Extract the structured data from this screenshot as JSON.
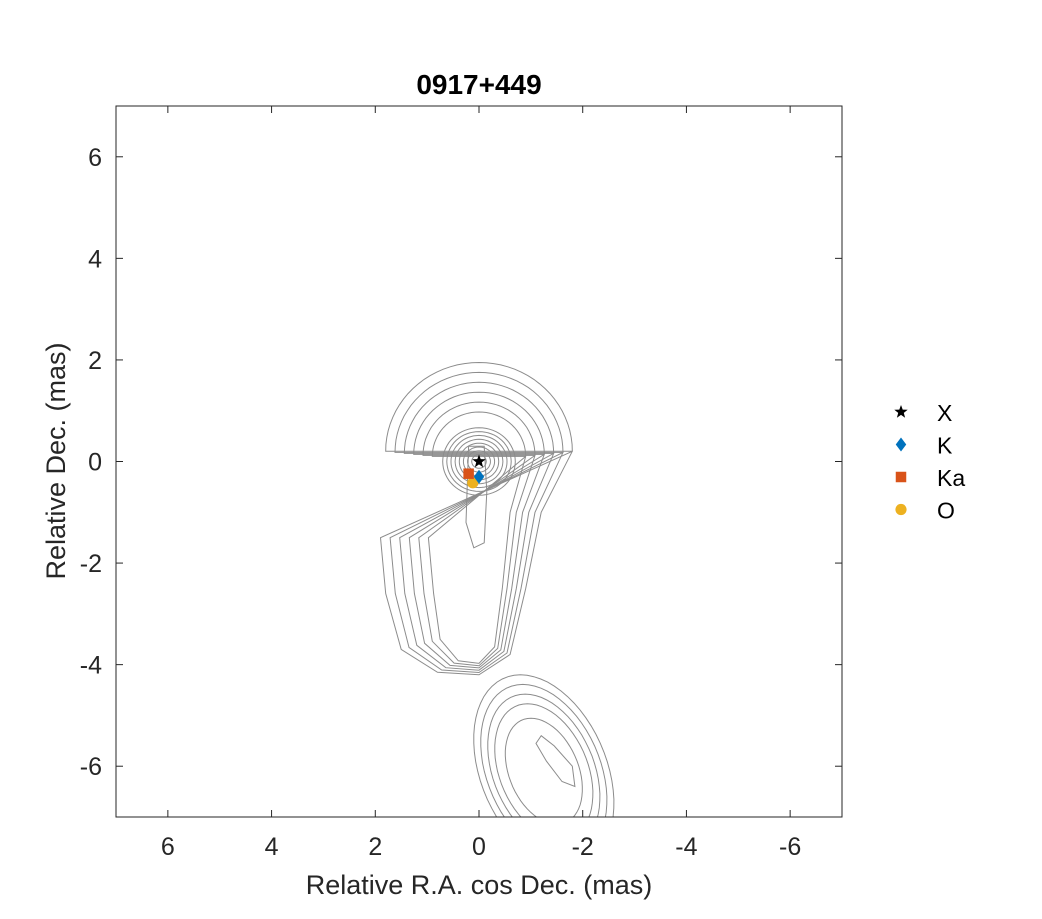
{
  "chart_data": {
    "type": "scatter",
    "title": "0917+449",
    "xlabel": "Relative R.A. cos Dec. (mas)",
    "ylabel": "Relative Dec. (mas)",
    "xlim": [
      7,
      -7
    ],
    "ylim": [
      -7,
      7
    ],
    "x_reversed": true,
    "xticks": [
      6,
      4,
      2,
      0,
      -2,
      -4,
      -6
    ],
    "yticks": [
      -6,
      -4,
      -2,
      0,
      2,
      4,
      6
    ],
    "grid": false,
    "legend_position": "outside-right",
    "contours": true,
    "contour_color": "#8c8c8c",
    "series": [
      {
        "name": "X",
        "marker": "star",
        "color": "#000000",
        "x": [
          0.0
        ],
        "y": [
          0.0
        ]
      },
      {
        "name": "K",
        "marker": "diamond",
        "color": "#0072BD",
        "x": [
          0.0
        ],
        "y": [
          -0.3
        ]
      },
      {
        "name": "Ka",
        "marker": "square",
        "color": "#D95319",
        "x": [
          0.2
        ],
        "y": [
          -0.24
        ]
      },
      {
        "name": "O",
        "marker": "circle",
        "color": "#EDB120",
        "x": [
          0.12
        ],
        "y": [
          -0.42
        ]
      }
    ]
  }
}
